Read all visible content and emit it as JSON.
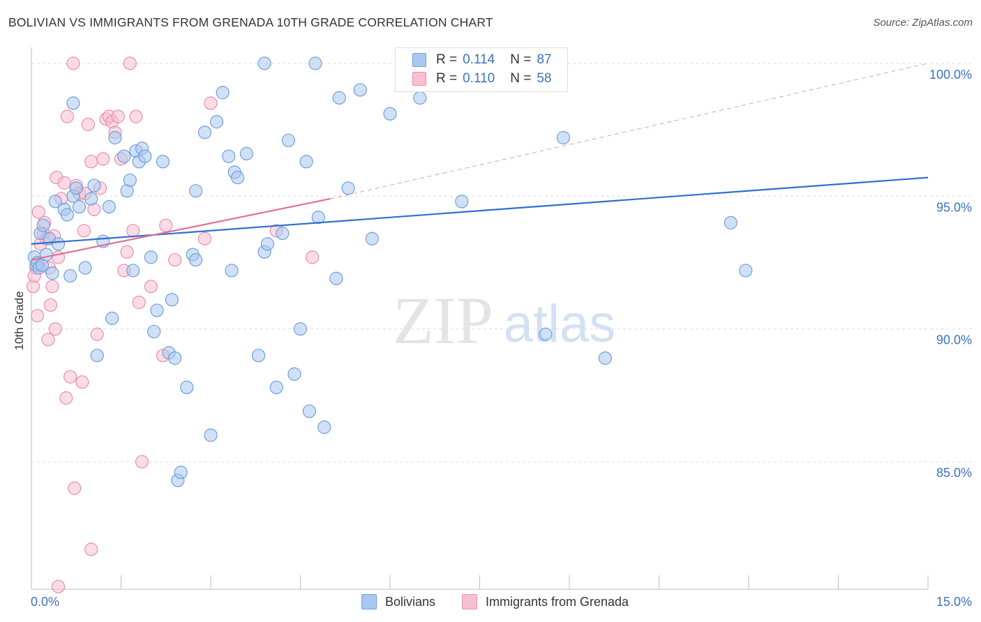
{
  "title": "BOLIVIAN VS IMMIGRANTS FROM GRENADA 10TH GRADE CORRELATION CHART",
  "source": "Source: ZipAtlas.com",
  "colors": {
    "blue_fill": "#a9c8f0",
    "blue_stroke": "#6f9fd8",
    "blue_line": "#2f6fce",
    "pink_fill": "#f7c0d1",
    "pink_stroke": "#e88fac",
    "pink_line": "#e36e97",
    "axis_label": "#3a72c4",
    "grid": "#dddddd"
  },
  "legend": {
    "rows": [
      {
        "r_label": "R =",
        "r_value": "0.114",
        "n_label": "N =",
        "n_value": "87"
      },
      {
        "r_label": "R =",
        "r_value": "0.110",
        "n_label": "N =",
        "n_value": "58"
      }
    ],
    "series_names": [
      "Bolivians",
      "Immigrants from Grenada"
    ]
  },
  "watermark": {
    "zip": "ZIP",
    "atlas": "atlas"
  },
  "chart_data": {
    "type": "scatter",
    "title": "BOLIVIAN VS IMMIGRANTS FROM GRENADA 10TH GRADE CORRELATION CHART",
    "xlabel": "",
    "ylabel": "10th Grade",
    "xlim": [
      0,
      15
    ],
    "ylim": [
      80.2,
      100.6
    ],
    "x_tick_labels": [
      "0.0%",
      "15.0%"
    ],
    "y_tick_values": [
      85,
      90,
      95,
      100
    ],
    "y_tick_labels": [
      "85.0%",
      "90.0%",
      "95.0%",
      "100.0%"
    ],
    "series": [
      {
        "name": "Bolivians",
        "r": 0.114,
        "n": 87,
        "trend": {
          "x": [
            0,
            15
          ],
          "y": [
            93.2,
            95.7
          ],
          "style": "solid"
        },
        "points": [
          [
            0.05,
            92.7
          ],
          [
            0.08,
            92.4
          ],
          [
            0.1,
            92.5
          ],
          [
            0.13,
            92.3
          ],
          [
            0.15,
            93.6
          ],
          [
            0.18,
            92.4
          ],
          [
            0.2,
            93.9
          ],
          [
            0.25,
            92.8
          ],
          [
            0.3,
            93.4
          ],
          [
            0.35,
            92.1
          ],
          [
            0.4,
            94.8
          ],
          [
            0.45,
            93.2
          ],
          [
            0.55,
            94.5
          ],
          [
            0.6,
            94.3
          ],
          [
            0.65,
            92.0
          ],
          [
            0.7,
            95.0
          ],
          [
            0.75,
            95.3
          ],
          [
            0.8,
            94.6
          ],
          [
            0.9,
            92.3
          ],
          [
            1.0,
            94.9
          ],
          [
            1.05,
            95.4
          ],
          [
            1.2,
            93.3
          ],
          [
            1.3,
            94.6
          ],
          [
            1.35,
            90.4
          ],
          [
            1.4,
            97.2
          ],
          [
            1.55,
            96.5
          ],
          [
            1.6,
            95.2
          ],
          [
            1.65,
            95.6
          ],
          [
            1.75,
            96.7
          ],
          [
            1.8,
            96.3
          ],
          [
            1.85,
            96.8
          ],
          [
            1.9,
            96.5
          ],
          [
            2.0,
            92.7
          ],
          [
            2.05,
            89.9
          ],
          [
            2.1,
            90.7
          ],
          [
            2.2,
            96.3
          ],
          [
            2.3,
            89.1
          ],
          [
            2.35,
            91.1
          ],
          [
            2.4,
            88.9
          ],
          [
            2.45,
            84.3
          ],
          [
            2.5,
            84.6
          ],
          [
            2.6,
            87.8
          ],
          [
            2.7,
            92.8
          ],
          [
            2.75,
            95.2
          ],
          [
            2.9,
            97.4
          ],
          [
            3.0,
            86.0
          ],
          [
            3.1,
            97.8
          ],
          [
            3.2,
            98.9
          ],
          [
            3.3,
            96.5
          ],
          [
            3.35,
            92.2
          ],
          [
            3.4,
            95.9
          ],
          [
            3.45,
            95.7
          ],
          [
            3.6,
            96.6
          ],
          [
            3.8,
            89.0
          ],
          [
            3.9,
            92.9
          ],
          [
            3.95,
            93.2
          ],
          [
            4.1,
            87.8
          ],
          [
            4.2,
            93.6
          ],
          [
            4.3,
            97.1
          ],
          [
            4.4,
            88.3
          ],
          [
            4.5,
            90.0
          ],
          [
            4.6,
            96.3
          ],
          [
            4.65,
            86.9
          ],
          [
            4.75,
            100.0
          ],
          [
            4.8,
            94.2
          ],
          [
            4.9,
            86.3
          ],
          [
            5.1,
            91.9
          ],
          [
            5.15,
            98.7
          ],
          [
            5.3,
            95.3
          ],
          [
            5.5,
            99.0
          ],
          [
            5.7,
            93.4
          ],
          [
            6.0,
            98.1
          ],
          [
            6.45,
            100.0
          ],
          [
            6.5,
            98.7
          ],
          [
            7.2,
            94.8
          ],
          [
            7.6,
            100.0
          ],
          [
            7.7,
            100.0
          ],
          [
            8.6,
            89.8
          ],
          [
            8.9,
            97.2
          ],
          [
            9.6,
            88.9
          ],
          [
            11.7,
            94.0
          ],
          [
            11.95,
            92.2
          ],
          [
            1.1,
            89.0
          ],
          [
            0.7,
            98.5
          ],
          [
            2.75,
            92.6
          ],
          [
            1.7,
            92.2
          ],
          [
            3.9,
            100.0
          ]
        ]
      },
      {
        "name": "Immigrants from Grenada",
        "r": 0.11,
        "n": 58,
        "trend": {
          "x": [
            0,
            5.0
          ],
          "y": [
            92.6,
            94.9
          ],
          "style": "solid",
          "extension": {
            "x": [
              5.0,
              15
            ],
            "y": [
              94.9,
              100.0
            ],
            "style": "dashed"
          }
        },
        "points": [
          [
            0.03,
            91.6
          ],
          [
            0.05,
            92.0
          ],
          [
            0.08,
            92.3
          ],
          [
            0.1,
            90.5
          ],
          [
            0.12,
            94.4
          ],
          [
            0.15,
            93.2
          ],
          [
            0.2,
            93.6
          ],
          [
            0.22,
            94.0
          ],
          [
            0.25,
            93.4
          ],
          [
            0.28,
            89.6
          ],
          [
            0.3,
            92.3
          ],
          [
            0.32,
            90.9
          ],
          [
            0.35,
            91.6
          ],
          [
            0.38,
            93.5
          ],
          [
            0.4,
            90.0
          ],
          [
            0.42,
            95.7
          ],
          [
            0.45,
            92.7
          ],
          [
            0.5,
            94.9
          ],
          [
            0.55,
            95.5
          ],
          [
            0.58,
            87.4
          ],
          [
            0.6,
            98.0
          ],
          [
            0.65,
            88.2
          ],
          [
            0.7,
            100.0
          ],
          [
            0.72,
            84.0
          ],
          [
            0.75,
            95.4
          ],
          [
            0.8,
            95.1
          ],
          [
            0.85,
            88.0
          ],
          [
            0.88,
            93.7
          ],
          [
            0.9,
            95.1
          ],
          [
            0.95,
            97.7
          ],
          [
            1.0,
            96.3
          ],
          [
            1.05,
            94.5
          ],
          [
            1.1,
            89.8
          ],
          [
            1.15,
            95.3
          ],
          [
            1.2,
            96.4
          ],
          [
            1.25,
            97.9
          ],
          [
            1.3,
            98.0
          ],
          [
            1.35,
            97.8
          ],
          [
            1.4,
            97.4
          ],
          [
            1.45,
            98.0
          ],
          [
            1.5,
            96.4
          ],
          [
            1.55,
            92.2
          ],
          [
            1.6,
            92.9
          ],
          [
            1.65,
            100.0
          ],
          [
            1.7,
            93.7
          ],
          [
            1.75,
            98.0
          ],
          [
            1.8,
            91.0
          ],
          [
            1.85,
            85.0
          ],
          [
            2.0,
            91.6
          ],
          [
            2.2,
            89.0
          ],
          [
            2.25,
            93.9
          ],
          [
            2.4,
            92.6
          ],
          [
            2.9,
            93.4
          ],
          [
            3.0,
            98.5
          ],
          [
            4.1,
            93.7
          ],
          [
            4.7,
            92.7
          ],
          [
            0.45,
            80.3
          ],
          [
            1.0,
            81.7
          ]
        ]
      }
    ]
  }
}
